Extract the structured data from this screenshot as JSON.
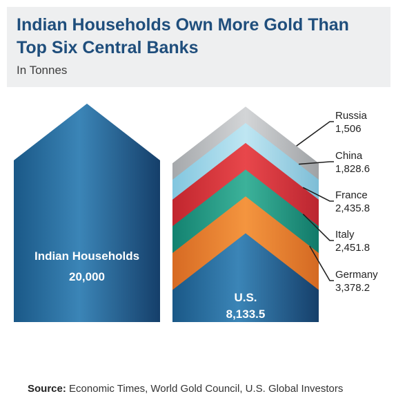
{
  "header": {
    "title": "Indian Households Own More Gold Than Top Six Central Banks",
    "subtitle": "In Tonnes"
  },
  "source": {
    "label": "Source:",
    "text": "Economic Times, World Gold Council, U.S. Global Investors"
  },
  "colors": {
    "header_bg": "#eeeff0",
    "title": "#1f4e7c",
    "households": "#2a6c98",
    "us": "#2a6c98",
    "germany": "#ea7f2e",
    "italy": "#1a9c84",
    "france": "#d9323a",
    "china": "#9fd8ea",
    "russia": "#b9bbbd"
  },
  "chart_data": {
    "type": "stacked-arrow",
    "title": "Indian Households Own More Gold Than Top Six Central Banks",
    "subtitle": "In Tonnes",
    "total": {
      "name": "Indian Households",
      "value": 20000,
      "value_label": "20,000"
    },
    "stack": [
      {
        "name": "U.S.",
        "value": 8133.5,
        "value_label": "8,133.5"
      },
      {
        "name": "Germany",
        "value": 3378.2,
        "value_label": "3,378.2"
      },
      {
        "name": "Italy",
        "value": 2451.8,
        "value_label": "2,451.8"
      },
      {
        "name": "France",
        "value": 2435.8,
        "value_label": "2,435.8"
      },
      {
        "name": "China",
        "value": 1828.6,
        "value_label": "1,828.6"
      },
      {
        "name": "Russia",
        "value": 1506,
        "value_label": "1,506"
      }
    ]
  }
}
